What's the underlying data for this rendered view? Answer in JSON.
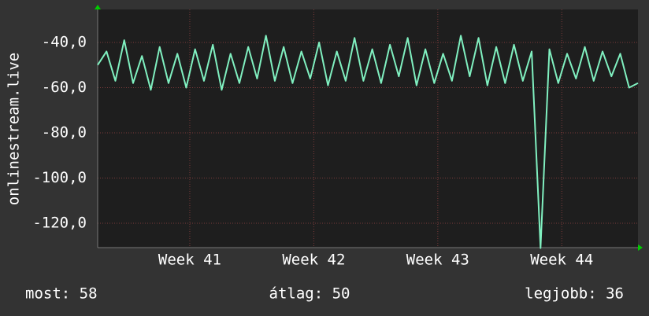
{
  "chart_data": {
    "type": "line",
    "ylabel": "onlinestream.live",
    "x": [
      0,
      0.5,
      1,
      1.5,
      2,
      2.5,
      3,
      3.5,
      4,
      4.5,
      5,
      5.5,
      6,
      6.5,
      7,
      7.5,
      8,
      8.5,
      9,
      9.5,
      10,
      10.5,
      11,
      11.5,
      12,
      12.5,
      13,
      13.5,
      14,
      14.5,
      15,
      15.5,
      16,
      16.5,
      17,
      17.5,
      18,
      18.5,
      19,
      19.5,
      20,
      20.5,
      21,
      21.5,
      22,
      22.5,
      23,
      23.5,
      24,
      24.5,
      25,
      25.5,
      26,
      26.5,
      27,
      27.5,
      28,
      28.5,
      29,
      29.5,
      30,
      30.5
    ],
    "series": [
      {
        "color": "#80f0c0",
        "values": [
          -50,
          -44,
          -57,
          -39,
          -58,
          -46,
          -61,
          -42,
          -58,
          -45,
          -60,
          -43,
          -57,
          -41,
          -61,
          -45,
          -58,
          -42,
          -56,
          -37,
          -57,
          -42,
          -58,
          -44,
          -56,
          -40,
          -59,
          -44,
          -57,
          -38,
          -57,
          -43,
          -58,
          -41,
          -55,
          -38,
          -59,
          -43,
          -58,
          -45,
          -57,
          -37,
          -55,
          -38,
          -59,
          -42,
          -58,
          -41,
          -57,
          -44,
          -131,
          -43,
          -58,
          -45,
          -56,
          -42,
          -57,
          -44,
          -55,
          -45,
          -60,
          -58
        ]
      }
    ],
    "xlim": [
      0,
      30.5
    ],
    "xticks": [
      {
        "value": 5.2,
        "label": "Week 41"
      },
      {
        "value": 12.2,
        "label": "Week 42"
      },
      {
        "value": 19.2,
        "label": "Week 43"
      },
      {
        "value": 26.2,
        "label": "Week 44"
      }
    ],
    "ylim": [
      -130.8,
      -25.4
    ],
    "yticks": [
      {
        "value": -40,
        "label": "-40,0"
      },
      {
        "value": -60,
        "label": "-60,0"
      },
      {
        "value": -80,
        "label": "-80,0"
      },
      {
        "value": -100,
        "label": "-100,0"
      },
      {
        "value": -120,
        "label": "-120,0"
      }
    ],
    "grid": true,
    "stats": [
      "most: 58",
      "átlag: 50",
      "legjobb: 36"
    ]
  }
}
